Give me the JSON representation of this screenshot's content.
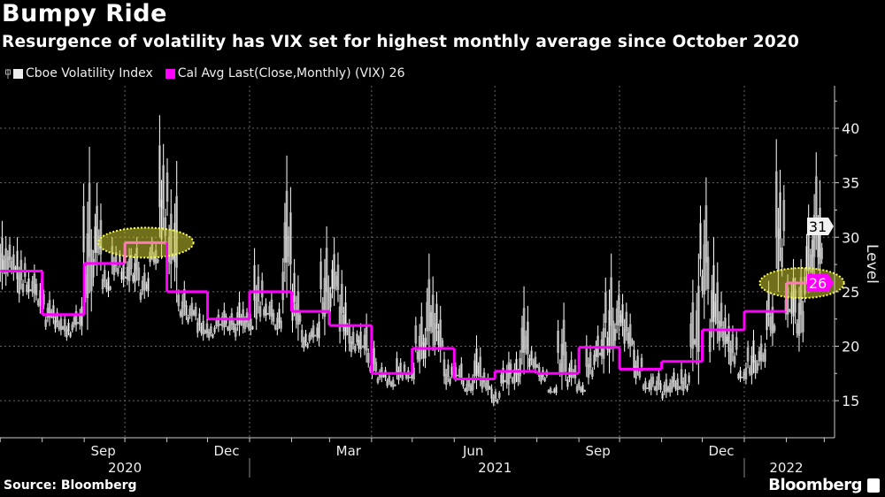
{
  "header": {
    "title": "Bumpy Ride",
    "subtitle": "Resurgence of volatility has VIX set for highest monthly average since October 2020"
  },
  "footer": {
    "source": "Source: Bloomberg",
    "brand": "Bloomberg"
  },
  "colors": {
    "background": "#000000",
    "vix": "#ffffff",
    "monthly_avg": "#ff00ff",
    "highlight": "#c8c832",
    "latest_month_avg": "#ff7ab8"
  },
  "chart_data": {
    "type": "line",
    "title": "Bumpy Ride",
    "subtitle": "Resurgence of volatility has VIX set for highest monthly average since October 2020",
    "ylabel": "Level",
    "ylim": [
      11.6,
      43.9
    ],
    "yticks": [
      15,
      20,
      25,
      30,
      35,
      40
    ],
    "grid": true,
    "legend_position": "top-left",
    "x_month_labels": [
      {
        "date": "2020-09-15",
        "label": "Sep"
      },
      {
        "date": "2020-12-15",
        "label": "Dec"
      },
      {
        "date": "2021-03-15",
        "label": "Mar"
      },
      {
        "date": "2021-06-15",
        "label": "Jun"
      },
      {
        "date": "2021-09-15",
        "label": "Sep"
      },
      {
        "date": "2021-12-15",
        "label": "Dec"
      }
    ],
    "x_year_labels": [
      {
        "date": "2020-10-01",
        "label": "2020"
      },
      {
        "date": "2021-07-01",
        "label": "2021"
      },
      {
        "date": "2022-02-01",
        "label": "2022"
      }
    ],
    "series": [
      {
        "name": "Cboe Volatility Index",
        "kind": "bars-high-low",
        "last_value_label": "31",
        "weeks": [
          [
            "2020-06-29",
            24.5,
            31.5
          ],
          [
            "2020-07-06",
            26,
            30
          ],
          [
            "2020-07-13",
            24,
            30
          ],
          [
            "2020-07-20",
            24,
            27.5
          ],
          [
            "2020-07-27",
            23,
            27
          ],
          [
            "2020-08-03",
            21.5,
            25
          ],
          [
            "2020-08-10",
            21,
            23.5
          ],
          [
            "2020-08-17",
            20.5,
            23
          ],
          [
            "2020-08-24",
            21,
            24.5
          ],
          [
            "2020-08-31",
            21.5,
            38.3
          ],
          [
            "2020-09-07",
            25.5,
            35
          ],
          [
            "2020-09-14",
            24.5,
            27.5
          ],
          [
            "2020-09-21",
            26,
            30
          ],
          [
            "2020-09-28",
            25,
            29
          ],
          [
            "2020-10-05",
            25,
            30
          ],
          [
            "2020-10-12",
            24,
            27.5
          ],
          [
            "2020-10-19",
            27,
            30
          ],
          [
            "2020-10-26",
            28,
            41.2
          ],
          [
            "2020-11-02",
            24,
            37
          ],
          [
            "2020-11-09",
            22,
            26
          ],
          [
            "2020-11-16",
            22,
            24.5
          ],
          [
            "2020-11-23",
            20.5,
            23.5
          ],
          [
            "2020-11-30",
            20.5,
            22.5
          ],
          [
            "2020-12-07",
            21,
            24
          ],
          [
            "2020-12-14",
            21,
            23.5
          ],
          [
            "2020-12-21",
            20.5,
            25
          ],
          [
            "2020-12-28",
            21,
            23.5
          ],
          [
            "2021-01-04",
            21.5,
            29
          ],
          [
            "2021-01-11",
            22,
            25
          ],
          [
            "2021-01-18",
            21,
            24
          ],
          [
            "2021-01-25",
            23,
            37.5
          ],
          [
            "2021-02-01",
            20.5,
            28
          ],
          [
            "2021-02-08",
            19.5,
            22
          ],
          [
            "2021-02-15",
            20,
            23
          ],
          [
            "2021-02-22",
            21,
            31
          ],
          [
            "2021-03-01",
            23,
            30
          ],
          [
            "2021-03-08",
            19.5,
            27
          ],
          [
            "2021-03-15",
            19,
            22.5
          ],
          [
            "2021-03-22",
            18.5,
            23
          ],
          [
            "2021-03-29",
            17,
            20.5
          ],
          [
            "2021-04-05",
            16.5,
            18.5
          ],
          [
            "2021-04-12",
            16,
            17.5
          ],
          [
            "2021-04-19",
            16.5,
            19.5
          ],
          [
            "2021-04-26",
            16.5,
            18.5
          ],
          [
            "2021-05-03",
            17.5,
            24
          ],
          [
            "2021-05-10",
            18,
            28.5
          ],
          [
            "2021-05-17",
            18.5,
            25
          ],
          [
            "2021-05-24",
            16,
            19.5
          ],
          [
            "2021-05-31",
            16.5,
            19
          ],
          [
            "2021-06-07",
            15.5,
            17.5
          ],
          [
            "2021-06-14",
            15.5,
            21
          ],
          [
            "2021-06-21",
            15.5,
            18
          ],
          [
            "2021-06-28",
            14.5,
            16.5
          ],
          [
            "2021-07-05",
            15.5,
            19.5
          ],
          [
            "2021-07-12",
            16,
            19.5
          ],
          [
            "2021-07-19",
            16.5,
            25.5
          ],
          [
            "2021-07-26",
            17.5,
            20
          ],
          [
            "2021-08-02",
            16.5,
            18.5
          ],
          [
            "2021-08-09",
            15.5,
            16.5
          ],
          [
            "2021-08-16",
            16,
            24
          ],
          [
            "2021-08-23",
            16,
            19.5
          ],
          [
            "2021-08-30",
            15.5,
            17
          ],
          [
            "2021-09-06",
            16.5,
            21
          ],
          [
            "2021-09-13",
            17.5,
            23
          ],
          [
            "2021-09-20",
            17.5,
            28.5
          ],
          [
            "2021-09-27",
            20,
            26
          ],
          [
            "2021-10-04",
            19,
            24
          ],
          [
            "2021-10-11",
            16.5,
            20.5
          ],
          [
            "2021-10-18",
            15.5,
            17.5
          ],
          [
            "2021-10-25",
            15.5,
            18
          ],
          [
            "2021-11-01",
            15,
            17.5
          ],
          [
            "2021-11-08",
            15.5,
            18
          ],
          [
            "2021-11-15",
            15.5,
            18.5
          ],
          [
            "2021-11-22",
            16.5,
            28.5
          ],
          [
            "2021-11-29",
            22.5,
            35.5
          ],
          [
            "2021-12-06",
            18.5,
            30
          ],
          [
            "2021-12-13",
            19,
            25
          ],
          [
            "2021-12-20",
            17.5,
            23
          ],
          [
            "2021-12-27",
            16.5,
            18.5
          ],
          [
            "2022-01-03",
            16.5,
            21.5
          ],
          [
            "2022-01-10",
            17.5,
            21
          ],
          [
            "2022-01-17",
            20,
            26
          ],
          [
            "2022-01-24",
            25,
            39
          ],
          [
            "2022-01-31",
            21,
            28
          ],
          [
            "2022-02-07",
            19.5,
            28
          ],
          [
            "2022-02-14",
            24,
            33
          ],
          [
            "2022-02-21",
            25,
            37.8
          ]
        ]
      },
      {
        "name": "Cal Avg Last(Close,Monthly) (VIX) 26",
        "kind": "step",
        "last_value_label": "26",
        "months": [
          [
            "2020-07",
            26.9
          ],
          [
            "2020-08",
            22.9
          ],
          [
            "2020-09",
            27.6
          ],
          [
            "2020-10",
            29.5
          ],
          [
            "2020-11",
            25.0
          ],
          [
            "2020-12",
            22.5
          ],
          [
            "2021-01",
            25.0
          ],
          [
            "2021-02",
            23.2
          ],
          [
            "2021-03",
            21.9
          ],
          [
            "2021-04",
            17.5
          ],
          [
            "2021-05",
            19.8
          ],
          [
            "2021-06",
            17.0
          ],
          [
            "2021-07",
            17.7
          ],
          [
            "2021-08",
            17.5
          ],
          [
            "2021-09",
            19.9
          ],
          [
            "2021-10",
            17.9
          ],
          [
            "2021-11",
            18.6
          ],
          [
            "2021-12",
            21.5
          ],
          [
            "2022-01",
            23.2
          ],
          [
            "2022-02",
            25.8
          ]
        ],
        "data_end": "2022-02-24",
        "highlighted_months": [
          "2020-10",
          "2022-02"
        ]
      }
    ]
  }
}
